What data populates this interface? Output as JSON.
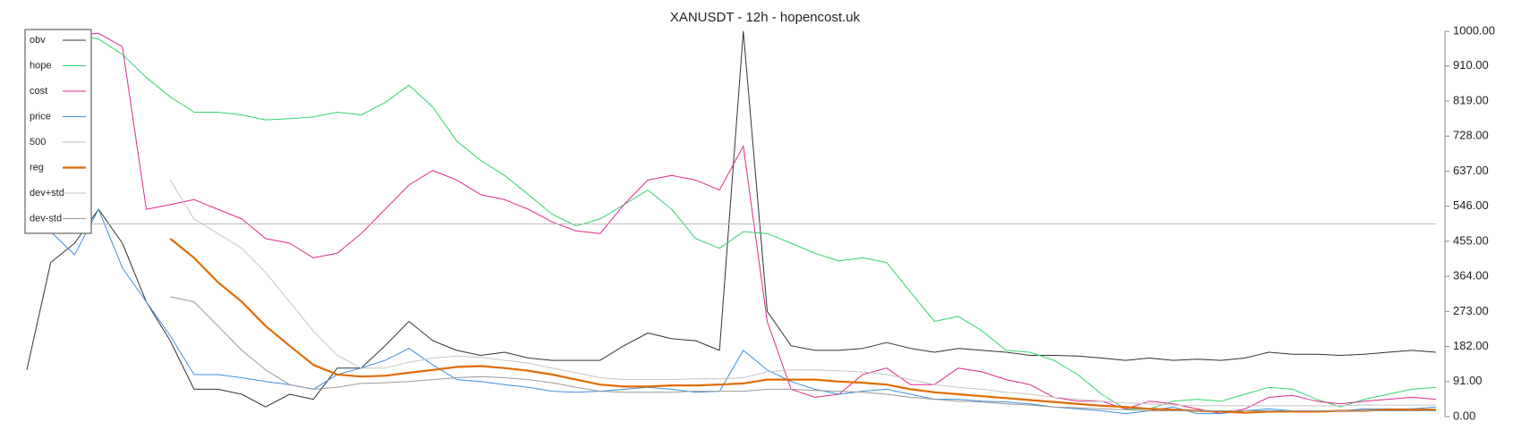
{
  "chart_data": {
    "type": "line",
    "title": "XANUSDT - 12h - hopencost.uk",
    "legend": "upper left",
    "y_axis_side": "right",
    "categories": [
      null,
      null,
      null,
      null,
      null,
      null,
      null,
      null,
      null,
      null,
      null,
      null,
      null,
      null,
      null,
      null,
      null,
      null,
      null,
      null,
      null,
      null,
      null,
      null,
      null,
      null,
      null,
      null,
      null,
      null,
      null,
      null,
      null,
      null,
      null,
      null,
      null,
      null,
      null,
      null,
      null,
      null,
      null,
      null,
      null,
      null,
      null,
      null,
      null,
      null,
      null,
      null,
      null,
      null,
      null,
      null,
      null,
      null,
      null,
      null
    ],
    "ylim": [
      0,
      1000
    ],
    "yticks": [
      {
        "value": 0,
        "label": "0.00"
      },
      {
        "value": 91,
        "label": "91.00"
      },
      {
        "value": 182,
        "label": "182.00"
      },
      {
        "value": 273,
        "label": "273.00"
      },
      {
        "value": 364,
        "label": "364.00"
      },
      {
        "value": 455,
        "label": "455.00"
      },
      {
        "value": 546,
        "label": "546.00"
      },
      {
        "value": 637,
        "label": "637.00"
      },
      {
        "value": 728,
        "label": "728.00"
      },
      {
        "value": 819,
        "label": "819.00"
      },
      {
        "value": 910,
        "label": "910.00"
      },
      {
        "value": 1000,
        "label": "1000.00"
      }
    ],
    "series": [
      {
        "name": "obv",
        "color": "#333333",
        "width": 1,
        "values": [
          121,
          400,
          450,
          538,
          450,
          298,
          197,
          71,
          71,
          58,
          25,
          58,
          45,
          126,
          126,
          184,
          247,
          197,
          172,
          159,
          167,
          152,
          146,
          146,
          146,
          184,
          217,
          202,
          197,
          172,
          1000,
          273,
          184,
          172,
          172,
          177,
          192,
          177,
          167,
          177,
          172,
          167,
          159,
          159,
          157,
          152,
          146,
          152,
          146,
          149,
          146,
          152,
          167,
          162,
          162,
          159,
          162,
          167,
          172,
          167
        ]
      },
      {
        "name": "hope",
        "color": "#2fd66b",
        "width": 1,
        "values": [
          960,
          985,
          990,
          980,
          940,
          880,
          830,
          790,
          790,
          783,
          770,
          773,
          778,
          790,
          783,
          815,
          860,
          803,
          715,
          665,
          626,
          576,
          525,
          495,
          513,
          550,
          588,
          538,
          462,
          437,
          480,
          475,
          450,
          424,
          404,
          412,
          400,
          323,
          247,
          260,
          222,
          172,
          167,
          146,
          109,
          58,
          20,
          20,
          40,
          45,
          40,
          58,
          76,
          71,
          45,
          25,
          45,
          58,
          71,
          76
        ]
      },
      {
        "name": "cost",
        "color": "#e0288c",
        "width": 1,
        "values": [
          900,
          960,
          990,
          995,
          960,
          538,
          550,
          563,
          538,
          513,
          462,
          450,
          412,
          424,
          475,
          538,
          601,
          639,
          614,
          576,
          563,
          538,
          505,
          482,
          475,
          550,
          614,
          626,
          614,
          588,
          702,
          247,
          71,
          50,
          58,
          109,
          126,
          83,
          83,
          126,
          116,
          96,
          83,
          50,
          40,
          40,
          20,
          40,
          33,
          20,
          8,
          20,
          50,
          55,
          40,
          33,
          40,
          45,
          50,
          45
        ]
      },
      {
        "name": "price",
        "color": "#3b8fe0",
        "width": 1,
        "values": [
          500,
          480,
          420,
          538,
          386,
          298,
          210,
          109,
          109,
          101,
          91,
          83,
          71,
          109,
          126,
          146,
          177,
          134,
          96,
          91,
          83,
          76,
          66,
          63,
          66,
          71,
          76,
          71,
          63,
          66,
          172,
          121,
          91,
          71,
          58,
          66,
          71,
          58,
          45,
          45,
          40,
          38,
          33,
          25,
          20,
          15,
          8,
          15,
          25,
          8,
          8,
          15,
          20,
          15,
          13,
          15,
          20,
          20,
          20,
          25
        ]
      },
      {
        "name": "500",
        "color": "#bbbbbb",
        "width": 1,
        "values": [
          500,
          500,
          500,
          500,
          500,
          500,
          500,
          500,
          500,
          500,
          500,
          500,
          500,
          500,
          500,
          500,
          500,
          500,
          500,
          500,
          500,
          500,
          500,
          500,
          500,
          500,
          500,
          500,
          500,
          500,
          500,
          500,
          500,
          500,
          500,
          500,
          500,
          500,
          500,
          500,
          500,
          500,
          500,
          500,
          500,
          500,
          500,
          500,
          500,
          500,
          500,
          500,
          500,
          500,
          500,
          500,
          500,
          500,
          500,
          500
        ]
      },
      {
        "name": "reg",
        "color": "#e06b00",
        "width": 2.2,
        "values": [
          null,
          null,
          null,
          null,
          null,
          null,
          462,
          412,
          349,
          298,
          235,
          184,
          134,
          109,
          104,
          106,
          114,
          121,
          129,
          131,
          126,
          119,
          109,
          96,
          83,
          78,
          78,
          81,
          81,
          83,
          86,
          96,
          96,
          96,
          91,
          88,
          83,
          71,
          63,
          58,
          53,
          48,
          43,
          38,
          33,
          28,
          25,
          20,
          18,
          15,
          13,
          10,
          13,
          13,
          13,
          15,
          15,
          18,
          18,
          18
        ]
      },
      {
        "name": "dev+std",
        "color": "#c4c4c4",
        "width": 1,
        "values": [
          null,
          null,
          null,
          null,
          null,
          null,
          614,
          513,
          475,
          437,
          374,
          298,
          222,
          159,
          126,
          126,
          141,
          152,
          157,
          154,
          146,
          139,
          126,
          114,
          101,
          96,
          96,
          96,
          98,
          98,
          101,
          116,
          121,
          121,
          119,
          116,
          109,
          96,
          83,
          76,
          71,
          63,
          58,
          50,
          45,
          40,
          35,
          33,
          30,
          28,
          28,
          28,
          28,
          28,
          28,
          28,
          30,
          30,
          30,
          30
        ]
      },
      {
        "name": "dev-std",
        "color": "#999999",
        "width": 1,
        "values": [
          null,
          null,
          null,
          null,
          null,
          null,
          311,
          298,
          235,
          172,
          121,
          83,
          71,
          76,
          86,
          88,
          91,
          96,
          101,
          104,
          101,
          96,
          88,
          76,
          66,
          63,
          63,
          63,
          66,
          66,
          66,
          71,
          71,
          68,
          66,
          63,
          58,
          50,
          45,
          40,
          38,
          33,
          30,
          25,
          23,
          20,
          18,
          15,
          15,
          15,
          15,
          15,
          15,
          15,
          15,
          15,
          15,
          15,
          15,
          15
        ]
      }
    ]
  }
}
